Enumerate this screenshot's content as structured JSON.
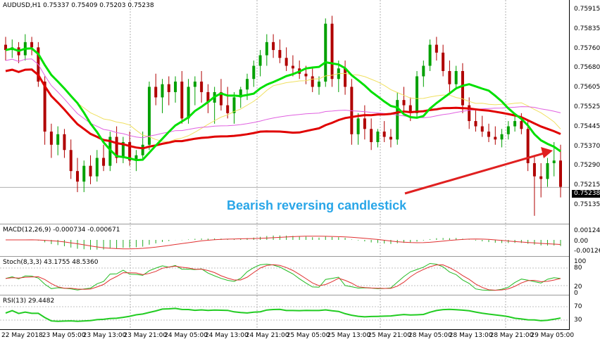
{
  "chart": {
    "header": "AUDUSD,H1  0.75337 0.75409 0.75203 0.75238",
    "current_price": "0.75238",
    "price_labels": [
      "0.75915",
      "0.75835",
      "0.75760",
      "0.75680",
      "0.75605",
      "0.75525",
      "0.75445",
      "0.75370",
      "0.75290",
      "0.75215",
      "0.75135"
    ],
    "annotation": "Bearish reversing candlestick",
    "colors": {
      "bull": "#00a000",
      "bear": "#b00000",
      "ma_fast": "#00e000",
      "ma_slow": "#e00000",
      "ma_yellow": "#f0e060",
      "ma_pink": "#e060e0",
      "annotation": "#29a6e8",
      "arrow": "#e02020"
    }
  },
  "macd": {
    "label": "MACD(12,26,9) -0.000734 -0.000671",
    "levels": [
      "0.001244",
      "0.00",
      "-0.001263"
    ]
  },
  "stoch": {
    "label": "Stoch(8,3,3) 43.1755 48.5360",
    "levels": [
      "100",
      "80",
      "20",
      "0"
    ]
  },
  "rsi": {
    "label": "RSI(13) 29.4482",
    "levels": [
      "70",
      "30"
    ]
  },
  "time_axis": [
    "22 May 2018",
    "23 May 05:00",
    "23 May 13:00",
    "23 May 21:00",
    "24 May 05:00",
    "24 May 13:00",
    "24 May 21:00",
    "25 May 05:00",
    "25 May 13:00",
    "25 May 21:00",
    "28 May 05:00",
    "28 May 13:00",
    "28 May 21:00",
    "29 May 05:00"
  ],
  "chart_data": {
    "type": "candlestick",
    "title": "AUDUSD,H1",
    "ylim": [
      0.751,
      0.7595
    ],
    "candles": [
      {
        "o": 0.7578,
        "h": 0.7581,
        "l": 0.7572,
        "c": 0.7576
      },
      {
        "o": 0.7576,
        "h": 0.758,
        "l": 0.7573,
        "c": 0.7577
      },
      {
        "o": 0.7577,
        "h": 0.7579,
        "l": 0.7571,
        "c": 0.7574
      },
      {
        "o": 0.7574,
        "h": 0.7582,
        "l": 0.7572,
        "c": 0.7579
      },
      {
        "o": 0.7579,
        "h": 0.7581,
        "l": 0.7574,
        "c": 0.7577
      },
      {
        "o": 0.7577,
        "h": 0.7579,
        "l": 0.7562,
        "c": 0.7564
      },
      {
        "o": 0.7564,
        "h": 0.7566,
        "l": 0.754,
        "c": 0.7545
      },
      {
        "o": 0.7545,
        "h": 0.7548,
        "l": 0.7535,
        "c": 0.754
      },
      {
        "o": 0.754,
        "h": 0.7547,
        "l": 0.7536,
        "c": 0.7544
      },
      {
        "o": 0.7544,
        "h": 0.7546,
        "l": 0.7535,
        "c": 0.7538
      },
      {
        "o": 0.7538,
        "h": 0.7542,
        "l": 0.7527,
        "c": 0.753
      },
      {
        "o": 0.753,
        "h": 0.7535,
        "l": 0.7522,
        "c": 0.7526
      },
      {
        "o": 0.7526,
        "h": 0.7534,
        "l": 0.7522,
        "c": 0.7532
      },
      {
        "o": 0.7532,
        "h": 0.7536,
        "l": 0.7525,
        "c": 0.7528
      },
      {
        "o": 0.7528,
        "h": 0.7538,
        "l": 0.7526,
        "c": 0.7535
      },
      {
        "o": 0.7535,
        "h": 0.754,
        "l": 0.753,
        "c": 0.7532
      },
      {
        "o": 0.7532,
        "h": 0.7545,
        "l": 0.753,
        "c": 0.7543
      },
      {
        "o": 0.7543,
        "h": 0.7547,
        "l": 0.7533,
        "c": 0.7535
      },
      {
        "o": 0.7535,
        "h": 0.7543,
        "l": 0.7533,
        "c": 0.7541
      },
      {
        "o": 0.7541,
        "h": 0.7545,
        "l": 0.7532,
        "c": 0.7534
      },
      {
        "o": 0.7534,
        "h": 0.7538,
        "l": 0.753,
        "c": 0.7536
      },
      {
        "o": 0.7536,
        "h": 0.7545,
        "l": 0.7534,
        "c": 0.754
      },
      {
        "o": 0.754,
        "h": 0.7564,
        "l": 0.7538,
        "c": 0.7562
      },
      {
        "o": 0.7562,
        "h": 0.7567,
        "l": 0.7555,
        "c": 0.7558
      },
      {
        "o": 0.7558,
        "h": 0.7565,
        "l": 0.7552,
        "c": 0.7563
      },
      {
        "o": 0.7563,
        "h": 0.7566,
        "l": 0.7555,
        "c": 0.756
      },
      {
        "o": 0.756,
        "h": 0.7566,
        "l": 0.7556,
        "c": 0.7564
      },
      {
        "o": 0.7564,
        "h": 0.7568,
        "l": 0.7548,
        "c": 0.755
      },
      {
        "o": 0.755,
        "h": 0.7565,
        "l": 0.7548,
        "c": 0.7562
      },
      {
        "o": 0.7562,
        "h": 0.7566,
        "l": 0.7555,
        "c": 0.7564
      },
      {
        "o": 0.7564,
        "h": 0.7568,
        "l": 0.7556,
        "c": 0.756
      },
      {
        "o": 0.756,
        "h": 0.7563,
        "l": 0.7552,
        "c": 0.7556
      },
      {
        "o": 0.7556,
        "h": 0.7562,
        "l": 0.7548,
        "c": 0.756
      },
      {
        "o": 0.756,
        "h": 0.7565,
        "l": 0.7553,
        "c": 0.7555
      },
      {
        "o": 0.7555,
        "h": 0.7562,
        "l": 0.755,
        "c": 0.7552
      },
      {
        "o": 0.7552,
        "h": 0.756,
        "l": 0.7548,
        "c": 0.7558
      },
      {
        "o": 0.7558,
        "h": 0.7562,
        "l": 0.7554,
        "c": 0.7561
      },
      {
        "o": 0.7561,
        "h": 0.7567,
        "l": 0.7557,
        "c": 0.7565
      },
      {
        "o": 0.7565,
        "h": 0.7572,
        "l": 0.7562,
        "c": 0.757
      },
      {
        "o": 0.757,
        "h": 0.7576,
        "l": 0.7566,
        "c": 0.7574
      },
      {
        "o": 0.7574,
        "h": 0.7582,
        "l": 0.757,
        "c": 0.7579
      },
      {
        "o": 0.7579,
        "h": 0.7582,
        "l": 0.7573,
        "c": 0.7576
      },
      {
        "o": 0.7576,
        "h": 0.758,
        "l": 0.7571,
        "c": 0.7573
      },
      {
        "o": 0.7573,
        "h": 0.7577,
        "l": 0.7568,
        "c": 0.757
      },
      {
        "o": 0.757,
        "h": 0.7574,
        "l": 0.7566,
        "c": 0.7569
      },
      {
        "o": 0.7569,
        "h": 0.7572,
        "l": 0.7565,
        "c": 0.7567
      },
      {
        "o": 0.7567,
        "h": 0.757,
        "l": 0.7563,
        "c": 0.7566
      },
      {
        "o": 0.7566,
        "h": 0.7569,
        "l": 0.756,
        "c": 0.7562
      },
      {
        "o": 0.7562,
        "h": 0.7566,
        "l": 0.7559,
        "c": 0.7564
      },
      {
        "o": 0.7564,
        "h": 0.7588,
        "l": 0.7562,
        "c": 0.7586
      },
      {
        "o": 0.7586,
        "h": 0.7589,
        "l": 0.7562,
        "c": 0.7565
      },
      {
        "o": 0.7565,
        "h": 0.7572,
        "l": 0.756,
        "c": 0.7569
      },
      {
        "o": 0.7569,
        "h": 0.7572,
        "l": 0.7559,
        "c": 0.7562
      },
      {
        "o": 0.7562,
        "h": 0.7565,
        "l": 0.754,
        "c": 0.7544
      },
      {
        "o": 0.7544,
        "h": 0.7552,
        "l": 0.754,
        "c": 0.755
      },
      {
        "o": 0.755,
        "h": 0.7555,
        "l": 0.7542,
        "c": 0.7546
      },
      {
        "o": 0.7546,
        "h": 0.755,
        "l": 0.7538,
        "c": 0.7541
      },
      {
        "o": 0.7541,
        "h": 0.7546,
        "l": 0.7539,
        "c": 0.7545
      },
      {
        "o": 0.7545,
        "h": 0.7549,
        "l": 0.7541,
        "c": 0.7543
      },
      {
        "o": 0.7543,
        "h": 0.7546,
        "l": 0.7539,
        "c": 0.7542
      },
      {
        "o": 0.7542,
        "h": 0.756,
        "l": 0.754,
        "c": 0.7557
      },
      {
        "o": 0.7557,
        "h": 0.7562,
        "l": 0.7552,
        "c": 0.7555
      },
      {
        "o": 0.7555,
        "h": 0.7558,
        "l": 0.7549,
        "c": 0.7552
      },
      {
        "o": 0.7552,
        "h": 0.7568,
        "l": 0.755,
        "c": 0.7566
      },
      {
        "o": 0.7566,
        "h": 0.7572,
        "l": 0.7562,
        "c": 0.757
      },
      {
        "o": 0.757,
        "h": 0.758,
        "l": 0.7568,
        "c": 0.7578
      },
      {
        "o": 0.7578,
        "h": 0.7581,
        "l": 0.7572,
        "c": 0.7575
      },
      {
        "o": 0.7575,
        "h": 0.7578,
        "l": 0.7566,
        "c": 0.7568
      },
      {
        "o": 0.7568,
        "h": 0.7572,
        "l": 0.756,
        "c": 0.7563
      },
      {
        "o": 0.7563,
        "h": 0.757,
        "l": 0.7561,
        "c": 0.7568
      },
      {
        "o": 0.7568,
        "h": 0.7571,
        "l": 0.7552,
        "c": 0.7555
      },
      {
        "o": 0.7555,
        "h": 0.7558,
        "l": 0.7546,
        "c": 0.7549
      },
      {
        "o": 0.7549,
        "h": 0.7553,
        "l": 0.7545,
        "c": 0.7547
      },
      {
        "o": 0.7547,
        "h": 0.7551,
        "l": 0.7543,
        "c": 0.7545
      },
      {
        "o": 0.7545,
        "h": 0.7548,
        "l": 0.7541,
        "c": 0.7543
      },
      {
        "o": 0.7543,
        "h": 0.7547,
        "l": 0.754,
        "c": 0.7542
      },
      {
        "o": 0.7542,
        "h": 0.7546,
        "l": 0.7539,
        "c": 0.7544
      },
      {
        "o": 0.7544,
        "h": 0.7549,
        "l": 0.7542,
        "c": 0.7547
      },
      {
        "o": 0.7547,
        "h": 0.7551,
        "l": 0.7545,
        "c": 0.7549
      },
      {
        "o": 0.7549,
        "h": 0.7552,
        "l": 0.7544,
        "c": 0.7546
      },
      {
        "o": 0.7546,
        "h": 0.7549,
        "l": 0.753,
        "c": 0.7533
      },
      {
        "o": 0.7533,
        "h": 0.7536,
        "l": 0.7513,
        "c": 0.7528
      },
      {
        "o": 0.7528,
        "h": 0.7533,
        "l": 0.752,
        "c": 0.7527
      },
      {
        "o": 0.7527,
        "h": 0.7535,
        "l": 0.7524,
        "c": 0.7533
      },
      {
        "o": 0.7533,
        "h": 0.7541,
        "l": 0.7528,
        "c": 0.7534
      },
      {
        "o": 0.7534,
        "h": 0.754,
        "l": 0.752,
        "c": 0.7524
      }
    ]
  }
}
